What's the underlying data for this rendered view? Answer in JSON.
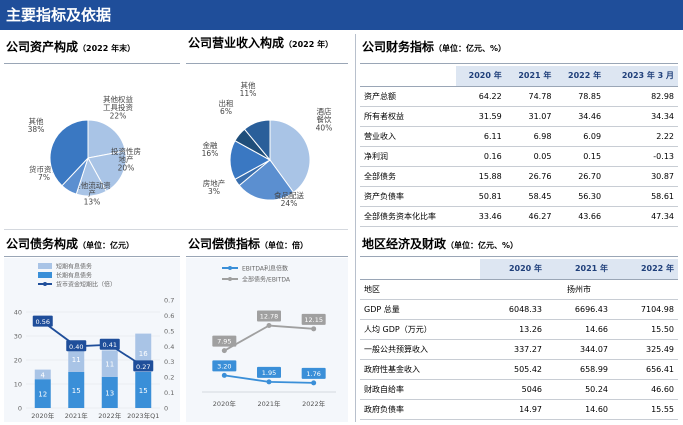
{
  "header": {
    "title": "主要指标及依据"
  },
  "asset_panel": {
    "title": "公司资产构成",
    "subtitle": "（2022 年末）"
  },
  "revenue_panel": {
    "title": "公司营业收入构成",
    "subtitle": "（2022 年）"
  },
  "finance_panel": {
    "title": "公司财务指标",
    "subtitle": "（单位：亿元、%）"
  },
  "debt_panel": {
    "title": "公司债务构成",
    "subtitle": "（单位：亿元）"
  },
  "solvency_panel": {
    "title": "公司偿债指标",
    "subtitle": "（单位：倍）"
  },
  "region_panel": {
    "title": "地区经济及财政",
    "subtitle": "（单位：亿元、%）"
  },
  "finance_table": {
    "headers": [
      "",
      "2020 年",
      "2021 年",
      "2022 年",
      "2023 年 3 月"
    ],
    "rows": [
      [
        "资产总额",
        "64.22",
        "74.78",
        "78.85",
        "82.98"
      ],
      [
        "所有者权益",
        "31.59",
        "31.07",
        "34.46",
        "34.34"
      ],
      [
        "营业收入",
        "6.11",
        "6.98",
        "6.09",
        "2.22"
      ],
      [
        "净利润",
        "0.16",
        "0.05",
        "0.15",
        "-0.13"
      ],
      [
        "全部债务",
        "15.88",
        "26.76",
        "26.70",
        "30.87"
      ],
      [
        "资产负债率",
        "50.81",
        "58.45",
        "56.30",
        "58.61"
      ],
      [
        "全部债务资本化比率",
        "33.46",
        "46.27",
        "43.66",
        "47.34"
      ]
    ]
  },
  "region_table": {
    "headers": [
      "",
      "2020 年",
      "2021 年",
      "2022 年"
    ],
    "area_label": "地区",
    "area_value": "扬州市",
    "rows": [
      [
        "GDP 总量",
        "6048.33",
        "6696.43",
        "7104.98"
      ],
      [
        "人均 GDP（万元）",
        "13.26",
        "14.66",
        "15.50"
      ],
      [
        "一般公共预算收入",
        "337.27",
        "344.07",
        "325.49"
      ],
      [
        "政府性基金收入",
        "505.42",
        "658.99",
        "656.41"
      ],
      [
        "财政自给率",
        "5046",
        "50.24",
        "46.60"
      ],
      [
        "政府负债率",
        "14.97",
        "14.60",
        "15.55"
      ]
    ]
  },
  "chart_data": [
    {
      "type": "pie",
      "title": "公司资产构成（2022 年末）",
      "labels": [
        "其他权益工具投资",
        "投资性房地产",
        "其他流动资产",
        "货币资金",
        "其他"
      ],
      "values": [
        22,
        20,
        13,
        7,
        38
      ],
      "label_texts": [
        "其他权益\n工具投资\n22%",
        "投资性房\n地产\n20%",
        "其他流动资\n产\n13%",
        "货币资金\n7%",
        "其他\n38%"
      ],
      "colors": [
        "#a9c4e6",
        "#a9c4e6",
        "#a9c4e6",
        "#5b8fd0",
        "#3a78c2"
      ]
    },
    {
      "type": "pie",
      "title": "公司营业收入构成（2022 年）",
      "labels": [
        "酒店餐饮",
        "食品配送",
        "房地产",
        "金融",
        "出租",
        "其他"
      ],
      "values": [
        40,
        24,
        3,
        16,
        6,
        11
      ],
      "label_texts": [
        "酒店\n餐饮\n40%",
        "食品配送\n24%",
        "房地产\n3%",
        "金融\n16%",
        "出租\n6%",
        "其他\n11%"
      ],
      "colors": [
        "#a9c4e6",
        "#5b8fd0",
        "#3a6fae",
        "#3a78c2",
        "#1f4e7a",
        "#2a5f9a"
      ]
    },
    {
      "type": "bar",
      "title": "公司债务构成（单位：亿元）",
      "categories": [
        "2020年",
        "2021年",
        "2022年",
        "2023年Q1"
      ],
      "series": [
        {
          "name": "短期有息债务",
          "values": [
            4,
            11,
            11,
            16
          ],
          "color": "#a9c4e6"
        },
        {
          "name": "长期有息债务",
          "values": [
            12,
            15,
            13,
            15
          ],
          "color": "#3a8fd8"
        },
        {
          "name": "货币资金短期比（倍）",
          "type": "line",
          "axis": "right",
          "values": [
            0.56,
            0.4,
            0.41,
            0.27
          ],
          "color": "#1f4e9a"
        }
      ],
      "ylim": [
        0,
        45
      ],
      "y_ticks": [
        0,
        10,
        20,
        30,
        40
      ],
      "y2lim": [
        0,
        0.7
      ],
      "y2_ticks": [
        0,
        0.1,
        0.2,
        0.3,
        0.4,
        0.5,
        0.6,
        0.7
      ],
      "y2_tick_labels": [
        "0",
        "0.1",
        "0.2",
        "0.3",
        "0.4",
        "0.5",
        "0.6",
        "0.7"
      ]
    },
    {
      "type": "line",
      "title": "公司偿债指标（单位：倍）",
      "categories": [
        "2020年",
        "2021年",
        "2022年"
      ],
      "series": [
        {
          "name": "EBITDA利息倍数",
          "values": [
            3.2,
            1.95,
            1.76
          ],
          "labels": [
            "3.20",
            "1.95",
            "1.76"
          ],
          "color": "#3a8fd8"
        },
        {
          "name": "全部债务/EBITDA",
          "values": [
            7.95,
            12.78,
            12.15
          ],
          "labels": [
            "7.95",
            "12.78",
            "12.15"
          ],
          "color": "#a0a0a0"
        }
      ],
      "ylim": [
        0,
        20
      ]
    }
  ]
}
